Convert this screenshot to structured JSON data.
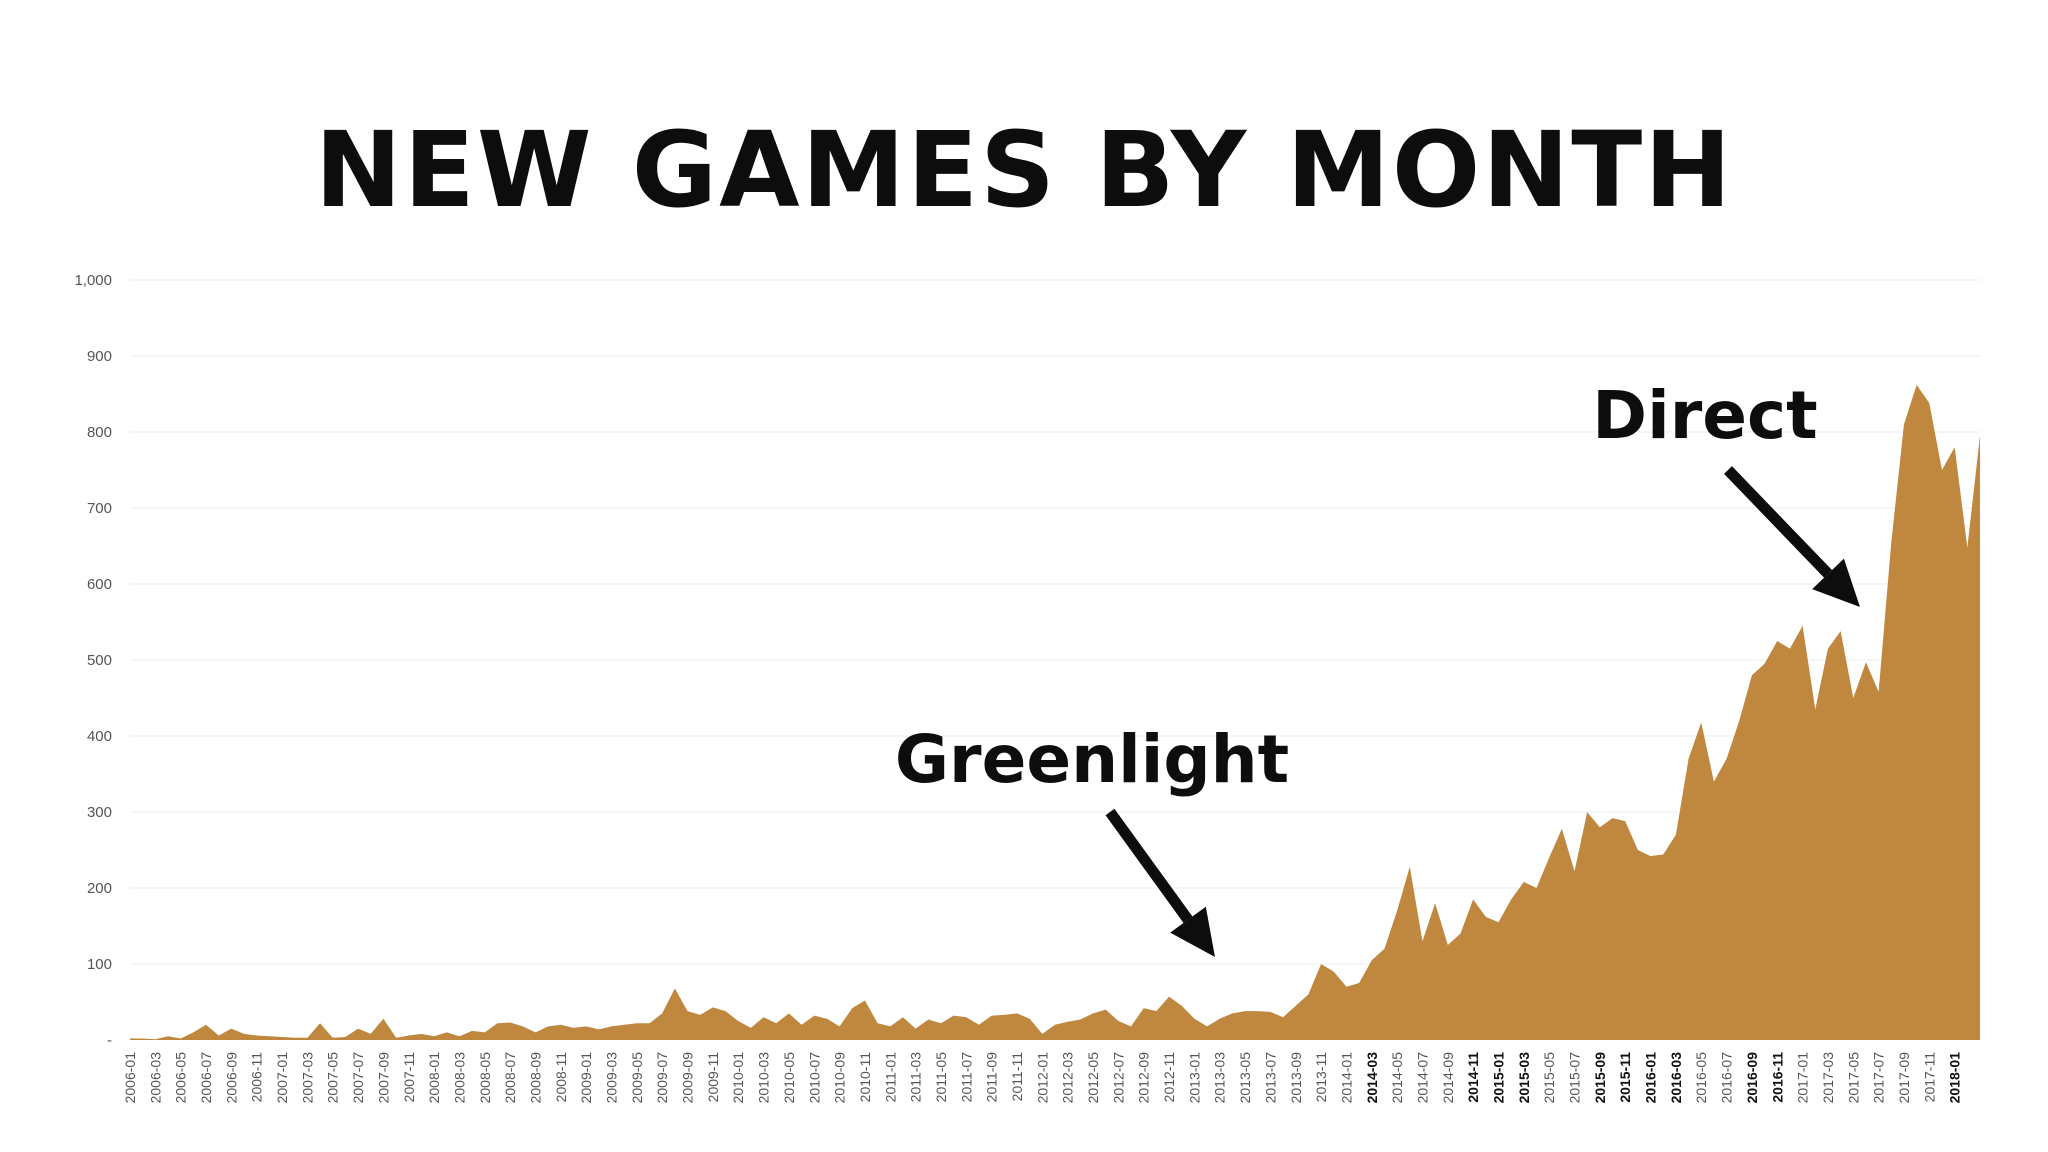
{
  "chart_data": {
    "type": "area",
    "title": "NEW GAMES BY MONTH",
    "xlabel": "",
    "ylabel": "",
    "ylim": [
      0,
      1000
    ],
    "yticks": [
      "-",
      "100",
      "200",
      "300",
      "400",
      "500",
      "600",
      "700",
      "800",
      "900",
      "1,000"
    ],
    "grid": true,
    "color": "#C0873F",
    "bold_tick_labels": [
      "2014-03",
      "2014-11",
      "2015-01",
      "2015-03",
      "2015-09",
      "2015-11",
      "2016-01",
      "2016-03",
      "2016-09",
      "2016-11",
      "2018-01"
    ],
    "x_tick_labels": [
      "2006-01",
      "2006-03",
      "2006-05",
      "2006-07",
      "2006-09",
      "2006-11",
      "2007-01",
      "2007-03",
      "2007-05",
      "2007-07",
      "2007-09",
      "2007-11",
      "2008-01",
      "2008-03",
      "2008-05",
      "2008-07",
      "2008-09",
      "2008-11",
      "2009-01",
      "2009-03",
      "2009-05",
      "2009-07",
      "2009-09",
      "2009-11",
      "2010-01",
      "2010-03",
      "2010-05",
      "2010-07",
      "2010-09",
      "2010-11",
      "2011-01",
      "2011-03",
      "2011-05",
      "2011-07",
      "2011-09",
      "2011-11",
      "2012-01",
      "2012-03",
      "2012-05",
      "2012-07",
      "2012-09",
      "2012-11",
      "2013-01",
      "2013-03",
      "2013-05",
      "2013-07",
      "2013-09",
      "2013-11",
      "2014-01",
      "2014-03",
      "2014-05",
      "2014-07",
      "2014-09",
      "2014-11",
      "2015-01",
      "2015-03",
      "2015-05",
      "2015-07",
      "2015-09",
      "2015-11",
      "2016-01",
      "2016-03",
      "2016-05",
      "2016-07",
      "2016-09",
      "2016-11",
      "2017-01",
      "2017-03",
      "2017-05",
      "2017-07",
      "2017-09",
      "2017-11",
      "2018-01"
    ],
    "x_start": "2006-01",
    "values": [
      2,
      2,
      1,
      5,
      2,
      10,
      20,
      6,
      15,
      8,
      6,
      5,
      4,
      3,
      3,
      22,
      3,
      4,
      15,
      8,
      28,
      3,
      6,
      8,
      5,
      10,
      5,
      12,
      10,
      22,
      23,
      18,
      10,
      18,
      20,
      16,
      18,
      14,
      18,
      20,
      22,
      22,
      35,
      68,
      38,
      33,
      43,
      38,
      25,
      16,
      30,
      22,
      35,
      20,
      32,
      28,
      18,
      42,
      52,
      22,
      18,
      30,
      15,
      27,
      22,
      32,
      30,
      20,
      32,
      33,
      35,
      28,
      8,
      20,
      24,
      27,
      35,
      40,
      25,
      18,
      42,
      38,
      57,
      45,
      28,
      18,
      28,
      35,
      38,
      38,
      37,
      30,
      45,
      60,
      100,
      90,
      70,
      75,
      105,
      120,
      170,
      228,
      130,
      180,
      125,
      140,
      185,
      162,
      155,
      185,
      208,
      200,
      240,
      278,
      222,
      300,
      280,
      292,
      288,
      250,
      242,
      244,
      270,
      370,
      418,
      340,
      370,
      420,
      480,
      495,
      525,
      515,
      545,
      435,
      515,
      538,
      450,
      497,
      458,
      655,
      810,
      862,
      838,
      750,
      780,
      648,
      795
    ],
    "annotations": [
      {
        "text": "Greenlight",
        "points_to": "2013-01"
      },
      {
        "text": "Direct",
        "points_to": "2017-05"
      }
    ]
  }
}
